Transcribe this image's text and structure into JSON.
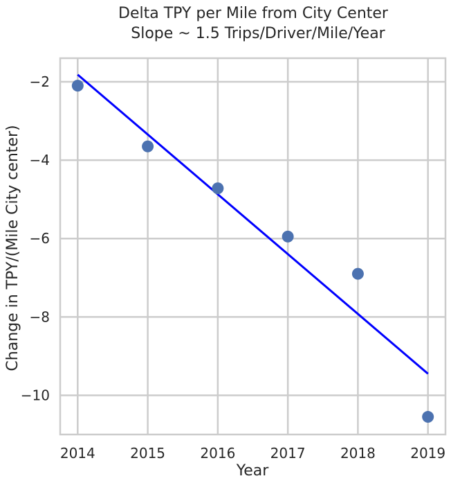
{
  "chart_data": {
    "type": "scatter",
    "title": "Delta TPY per Mile from  City Center",
    "subtitle": "Slope ~ 1.5 Trips/Driver/Mile/Year",
    "xlabel": "Year",
    "ylabel": "Change in TPY/(Mile City center)",
    "xlim": [
      2013.75,
      2019.25
    ],
    "ylim": [
      -11.0,
      -1.4
    ],
    "xticks": [
      2014,
      2015,
      2016,
      2017,
      2018,
      2019
    ],
    "yticks": [
      -10,
      -8,
      -6,
      -4,
      -2
    ],
    "xtick_labels": [
      "2014",
      "2015",
      "2016",
      "2017",
      "2018",
      "2019"
    ],
    "ytick_labels": [
      "−10",
      "−8",
      "−6",
      "−4",
      "−2"
    ],
    "grid": true,
    "series": [
      {
        "kind": "scatter",
        "color": "#4c72b0",
        "x": [
          2014,
          2015,
          2016,
          2017,
          2018,
          2019
        ],
        "y": [
          -2.1,
          -3.65,
          -4.72,
          -5.95,
          -6.9,
          -10.55
        ]
      },
      {
        "kind": "line",
        "color": "#0000ff",
        "x": [
          2014,
          2019
        ],
        "y": [
          -1.82,
          -9.45
        ]
      }
    ]
  }
}
